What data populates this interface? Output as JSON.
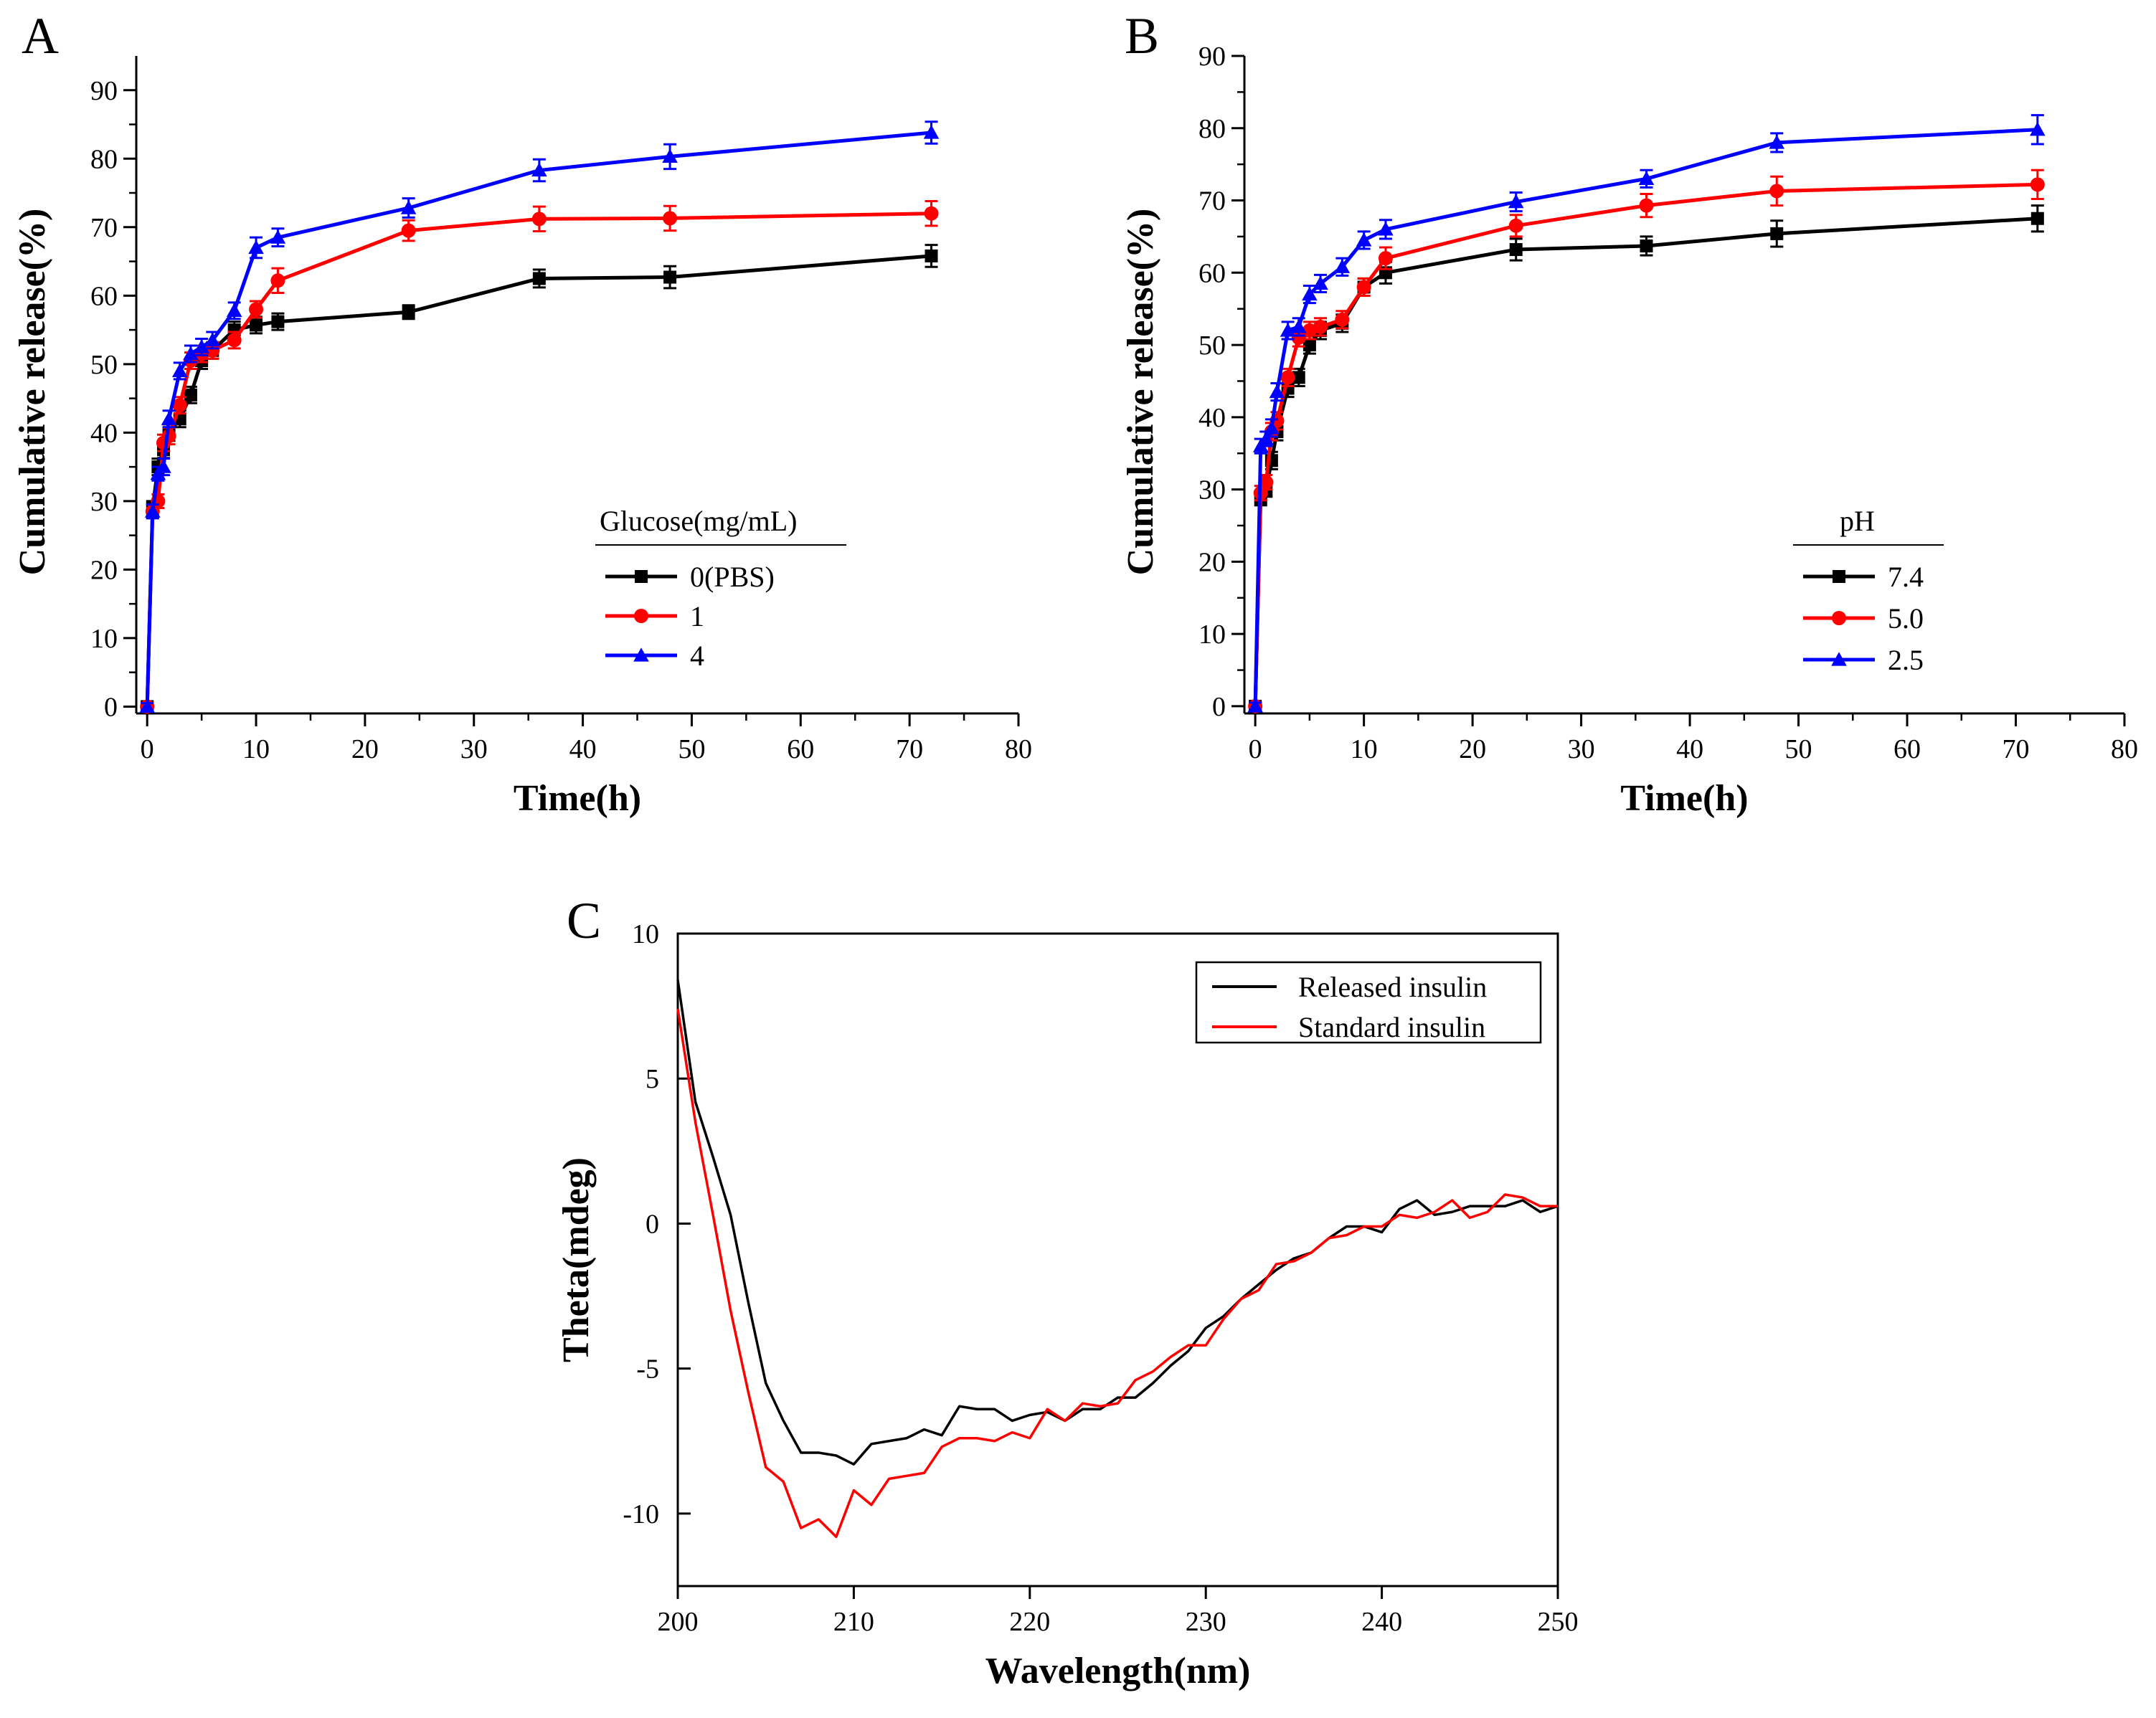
{
  "chart_data": [
    {
      "id": "A",
      "type": "line",
      "panel_label": "A",
      "title": "",
      "xlabel": "Time(h)",
      "ylabel": "Cumulative release(%)",
      "xlim": [
        -1,
        80
      ],
      "ylim": [
        -1,
        95
      ],
      "xticks": [
        "0",
        "10",
        "20",
        "30",
        "40",
        "50",
        "60",
        "70",
        "80"
      ],
      "yticks": [
        "0",
        "10",
        "20",
        "30",
        "40",
        "50",
        "60",
        "70",
        "80",
        "90"
      ],
      "legend": {
        "title": "Glucose(mg/mL)",
        "placement": "lower-right"
      },
      "x": [
        0,
        0.5,
        1,
        1.5,
        2,
        3,
        4,
        5,
        6,
        8,
        10,
        12,
        24,
        36,
        48,
        72
      ],
      "series": [
        {
          "name": "0(PBS)",
          "color": "#000000",
          "marker": "square",
          "values": [
            0,
            29,
            35,
            37.5,
            40,
            42,
            45.5,
            50.5,
            52,
            55,
            55.7,
            56.2,
            57.6,
            62.5,
            62.7,
            65.8
          ],
          "errors": [
            0.5,
            1,
            1.2,
            1.2,
            1.2,
            1.2,
            1.2,
            1.2,
            1.2,
            1.2,
            1.2,
            1.2,
            1,
            1.3,
            1.6,
            1.6
          ]
        },
        {
          "name": "1",
          "color": "#ff0000",
          "marker": "circle",
          "values": [
            0,
            28.5,
            30,
            38.5,
            39.5,
            44,
            50.5,
            51.5,
            52,
            53.5,
            58,
            62.2,
            69.5,
            71.2,
            71.3,
            72
          ],
          "errors": [
            0.5,
            1,
            1,
            1.2,
            1.2,
            1.2,
            1.2,
            1.2,
            1.2,
            1.2,
            1.2,
            1.8,
            1.5,
            1.8,
            1.8,
            1.8
          ]
        },
        {
          "name": "4",
          "color": "#0000ff",
          "marker": "triangle",
          "values": [
            0,
            28.5,
            34,
            35,
            42,
            49,
            51.5,
            52.5,
            53.5,
            57.8,
            67,
            68.5,
            72.8,
            78.3,
            80.3,
            83.8
          ],
          "errors": [
            0.5,
            1,
            1,
            1.2,
            1.2,
            1.2,
            1.2,
            1.2,
            1.2,
            1.2,
            1.5,
            1.3,
            1.4,
            1.6,
            1.8,
            1.6
          ]
        }
      ]
    },
    {
      "id": "B",
      "type": "line",
      "panel_label": "B",
      "title": "",
      "xlabel": "Time(h)",
      "ylabel": "Cumulative release(%)",
      "xlim": [
        -1,
        80
      ],
      "ylim": [
        -1,
        90
      ],
      "xticks": [
        "0",
        "10",
        "20",
        "30",
        "40",
        "50",
        "60",
        "70",
        "80"
      ],
      "yticks": [
        "0",
        "10",
        "20",
        "30",
        "40",
        "50",
        "60",
        "70",
        "80",
        "90"
      ],
      "legend": {
        "title": "pH",
        "placement": "lower-right"
      },
      "x": [
        0,
        0.5,
        1,
        1.5,
        2,
        3,
        4,
        5,
        6,
        8,
        10,
        12,
        24,
        36,
        48,
        72
      ],
      "series": [
        {
          "name": "7.4",
          "color": "#000000",
          "marker": "square",
          "values": [
            0,
            28.8,
            30,
            34,
            38,
            44,
            45.5,
            50,
            52,
            53,
            58,
            60,
            63.2,
            63.7,
            65.4,
            67.5
          ],
          "errors": [
            0.5,
            1,
            1,
            1.2,
            1.2,
            1.2,
            1.2,
            1.2,
            1.2,
            1.2,
            1.2,
            1.5,
            1.5,
            1.3,
            1.8,
            1.8
          ]
        },
        {
          "name": "5.0",
          "color": "#ff0000",
          "marker": "circle",
          "values": [
            0,
            29.5,
            31,
            38,
            39.5,
            45.5,
            51,
            52,
            52.5,
            53.5,
            58,
            62,
            66.5,
            69.3,
            71.3,
            72.2
          ],
          "errors": [
            0.5,
            1,
            1,
            1.2,
            1.2,
            1.2,
            1.2,
            1.2,
            1.2,
            1.2,
            1.2,
            1.5,
            1.5,
            1.6,
            2,
            2
          ]
        },
        {
          "name": "2.5",
          "color": "#0000ff",
          "marker": "triangle",
          "values": [
            0,
            36,
            37,
            38.5,
            43.5,
            52,
            52.5,
            57,
            58.5,
            60.8,
            64.5,
            66,
            69.8,
            73,
            78,
            79.8
          ],
          "errors": [
            0.5,
            1,
            1,
            1.2,
            1.2,
            1.2,
            1.2,
            1.2,
            1.2,
            1.2,
            1.2,
            1.3,
            1.3,
            1.2,
            1.3,
            2
          ]
        }
      ]
    },
    {
      "id": "C",
      "type": "line",
      "panel_label": "C",
      "title": "",
      "xlabel": "Wavelength(nm)",
      "ylabel": "Theta(mdeg)",
      "xlim": [
        200,
        250
      ],
      "ylim": [
        -12.5,
        10
      ],
      "xticks": [
        "200",
        "210",
        "220",
        "230",
        "240",
        "250"
      ],
      "yticks": [
        "10",
        "5",
        "0",
        "-5",
        "-10"
      ],
      "legend": {
        "placement": "top-right"
      },
      "x": [
        200,
        201,
        202,
        203,
        204,
        205,
        206,
        207,
        208,
        209,
        210,
        211,
        212,
        213,
        214,
        215,
        216,
        217,
        218,
        219,
        220,
        221,
        222,
        223,
        224,
        225,
        226,
        227,
        228,
        229,
        230,
        231,
        232,
        233,
        234,
        235,
        236,
        237,
        238,
        239,
        240,
        241,
        242,
        243,
        244,
        245,
        246,
        247,
        248,
        249,
        250
      ],
      "series": [
        {
          "name": "Released insulin",
          "color": "#000000",
          "values": [
            8.4,
            4.2,
            2.3,
            0.3,
            -2.7,
            -5.5,
            -6.8,
            -7.9,
            -7.9,
            -8.0,
            -8.3,
            -7.6,
            -7.5,
            -7.4,
            -7.1,
            -7.3,
            -6.3,
            -6.4,
            -6.4,
            -6.8,
            -6.6,
            -6.5,
            -6.8,
            -6.4,
            -6.4,
            -6.0,
            -6.0,
            -5.5,
            -4.9,
            -4.4,
            -3.6,
            -3.2,
            -2.6,
            -2.1,
            -1.6,
            -1.2,
            -1.0,
            -0.5,
            -0.1,
            -0.1,
            -0.3,
            0.5,
            0.8,
            0.3,
            0.4,
            0.6,
            0.6,
            0.6,
            0.8,
            0.4,
            0.6
          ]
        },
        {
          "name": "Standard insulin",
          "color": "#ff0000",
          "values": [
            7.4,
            3.5,
            0.3,
            -3.0,
            -5.8,
            -8.4,
            -8.9,
            -10.5,
            -10.2,
            -10.8,
            -9.2,
            -9.7,
            -8.8,
            -8.7,
            -8.6,
            -7.7,
            -7.4,
            -7.4,
            -7.5,
            -7.2,
            -7.4,
            -6.4,
            -6.8,
            -6.2,
            -6.3,
            -6.2,
            -5.4,
            -5.1,
            -4.6,
            -4.2,
            -4.2,
            -3.3,
            -2.6,
            -2.3,
            -1.4,
            -1.3,
            -1.0,
            -0.5,
            -0.4,
            -0.1,
            -0.1,
            0.3,
            0.2,
            0.4,
            0.8,
            0.2,
            0.4,
            1.0,
            0.9,
            0.6,
            0.6
          ]
        }
      ]
    }
  ]
}
